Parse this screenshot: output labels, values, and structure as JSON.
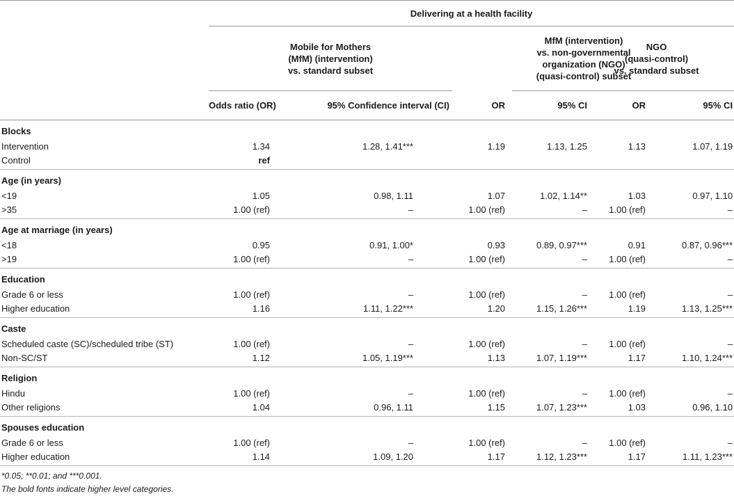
{
  "header": {
    "top": "Delivering at a health facility",
    "groups": [
      "Mobile for Mothers\n(MfM) (intervention)\nvs. standard subset",
      "MfM (intervention)\nvs. non-governmental\norganization (NGO)\n(quasi-control) subset",
      "NGO\n(quasi-control)\nvs. standard subset"
    ],
    "cols": [
      "Odds ratio (OR)",
      "95% Confidence interval (CI)",
      "OR",
      "95% CI",
      "OR",
      "95% CI"
    ]
  },
  "sections": [
    {
      "title": "Blocks",
      "rows": [
        {
          "label": "Intervention",
          "v": [
            "1.34",
            "1.28, 1.41***",
            "1.19",
            "1.13, 1.25",
            "1.13",
            "1.07, 1.19"
          ]
        },
        {
          "label": "Control",
          "v": [
            "ref",
            "",
            "",
            "",
            "",
            ""
          ],
          "bold0": true
        }
      ]
    },
    {
      "title": "Age (in years)",
      "rows": [
        {
          "label": "<19",
          "v": [
            "1.05",
            "0.98, 1.11",
            "1.07",
            "1.02, 1.14**",
            "1.03",
            "0.97, 1.10"
          ]
        },
        {
          "label": ">35",
          "v": [
            "1.00 (ref)",
            "–",
            "1.00 (ref)",
            "–",
            "1.00 (ref)",
            "–"
          ]
        }
      ]
    },
    {
      "title": "Age at marriage (in years)",
      "rows": [
        {
          "label": "<18",
          "v": [
            "0.95",
            "0.91, 1.00*",
            "0.93",
            "0.89, 0.97***",
            "0.91",
            "0.87, 0.96***"
          ]
        },
        {
          "label": ">19",
          "v": [
            "1.00 (ref)",
            "–",
            "1.00 (ref)",
            "–",
            "1.00 (ref)",
            "–"
          ]
        }
      ]
    },
    {
      "title": "Education",
      "rows": [
        {
          "label": "Grade 6 or less",
          "v": [
            "1.00 (ref)",
            "–",
            "1.00 (ref)",
            "–",
            "1.00 (ref)",
            "–"
          ]
        },
        {
          "label": "Higher education",
          "v": [
            "1.16",
            "1.11, 1.22***",
            "1.20",
            "1.15, 1.26***",
            "1.19",
            "1.13, 1.25***"
          ]
        }
      ]
    },
    {
      "title": "Caste",
      "rows": [
        {
          "label": "Scheduled caste (SC)/scheduled tribe (ST)",
          "v": [
            "1.00 (ref)",
            "–",
            "1.00 (ref)",
            "–",
            "1.00 (ref)",
            "–"
          ]
        },
        {
          "label": "Non-SC/ST",
          "v": [
            "1.12",
            "1.05, 1.19***",
            "1.13",
            "1.07, 1.19***",
            "1.17",
            "1.10, 1.24***"
          ]
        }
      ]
    },
    {
      "title": "Religion",
      "rows": [
        {
          "label": "Hindu",
          "v": [
            "1.00 (ref)",
            "–",
            "1.00 (ref)",
            "–",
            "1.00 (ref)",
            "–"
          ]
        },
        {
          "label": "Other religions",
          "v": [
            "1.04",
            "0.96, 1.11",
            "1.15",
            "1.07, 1.23***",
            "1.03",
            "0.96, 1.10"
          ]
        }
      ]
    },
    {
      "title": "Spouses education",
      "rows": [
        {
          "label": "Grade 6 or less",
          "v": [
            "1.00 (ref)",
            "–",
            "1.00 (ref)",
            "–",
            "1.00 (ref)",
            "–"
          ]
        },
        {
          "label": "Higher education",
          "v": [
            "1.14",
            "1.09, 1.20",
            "1.17",
            "1.12, 1.23***",
            "1.17",
            "1.11, 1.23***"
          ]
        }
      ]
    }
  ],
  "footnotes": [
    "*0.05; **0.01; and ***0.001.",
    "The bold fonts indicate higher level categories."
  ]
}
